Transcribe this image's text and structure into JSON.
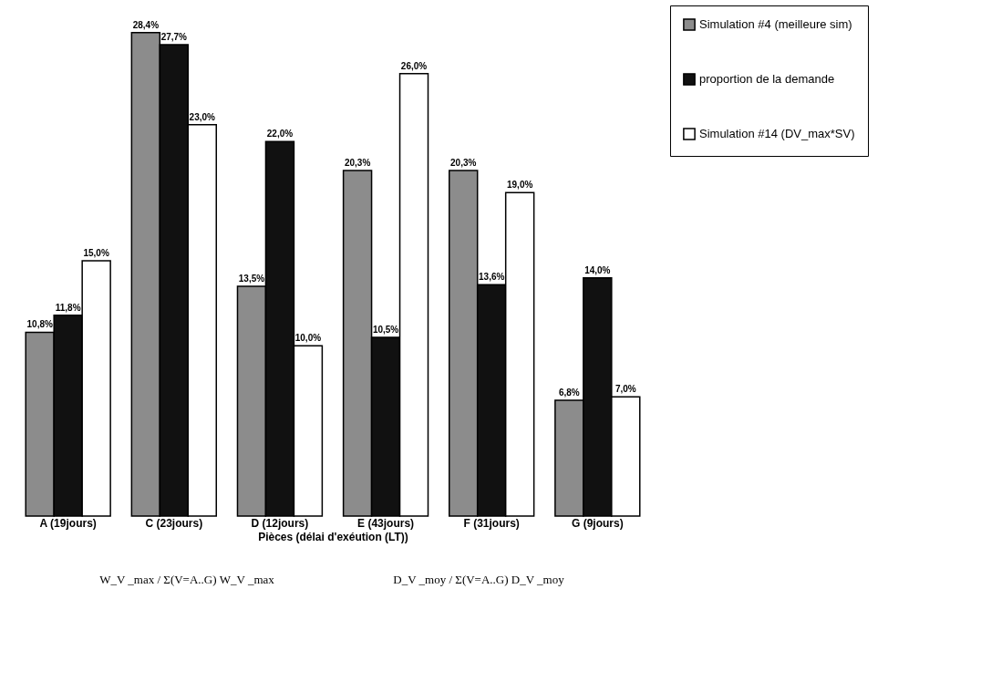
{
  "chart_data": {
    "type": "bar",
    "xlabel": "Pièces (délai d'exéution (LT))",
    "categories": [
      "A (19jours)",
      "C (23jours)",
      "D (12jours)",
      "E (43jours)",
      "F (31jours)",
      "G (9jours)"
    ],
    "series": [
      {
        "name": "Simulation #4 (meilleure sim)",
        "color": "#8c8c8c",
        "values": [
          10.8,
          28.4,
          13.5,
          20.3,
          20.3,
          6.8
        ],
        "value_labels": [
          "10,8%",
          "28,4%",
          "13,5%",
          "20,3%",
          "20,3%",
          "6,8%"
        ]
      },
      {
        "name": "proportion de la demande",
        "color": "#111111",
        "values": [
          11.8,
          27.7,
          22.0,
          10.5,
          13.6,
          14.0
        ],
        "value_labels": [
          "11,8%",
          "27,7%",
          "22,0%",
          "10,5%",
          "13,6%",
          "14,0%"
        ]
      },
      {
        "name": "Simulation #14 (DV_max*SV)",
        "color": "#ffffff",
        "values": [
          15.0,
          23.0,
          10.0,
          26.0,
          19.0,
          7.0
        ],
        "value_labels": [
          "15,0%",
          "23,0%",
          "10,0%",
          "26,0%",
          "19,0%",
          "7,0%"
        ]
      }
    ],
    "legend": "top right",
    "grid": false,
    "annotations": [
      "W_V _max / Σ(V=A..G) W_V _max",
      "D_V _moy / Σ(V=A..G) D_V _moy"
    ]
  }
}
